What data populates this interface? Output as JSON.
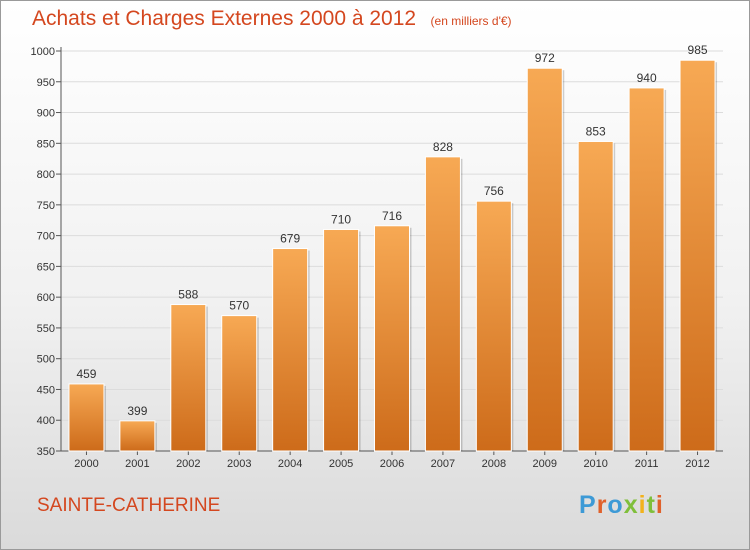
{
  "header": {
    "title": "Achats et Charges Externes 2000 à 2012",
    "subtitle": "(en milliers d'€)"
  },
  "footer": {
    "city": "SAINTE-CATHERINE",
    "logo_text": "Proxiti",
    "logo_colors": [
      "#3d9ad6",
      "#e0612b",
      "#3d9ad6",
      "#7fbf3a",
      "#f2b21c",
      "#7fbf3a",
      "#e0612b"
    ]
  },
  "colors": {
    "accent": "#d4471f",
    "bar_top": "#f7a954",
    "bar_bottom": "#cd6b1a",
    "grid": "#dcdcdc"
  },
  "chart_data": {
    "type": "bar",
    "title": "Achats et Charges Externes 2000 à 2012",
    "subtitle": "(en milliers d'€)",
    "categories": [
      "2000",
      "2001",
      "2002",
      "2003",
      "2004",
      "2005",
      "2006",
      "2007",
      "2008",
      "2009",
      "2010",
      "2011",
      "2012"
    ],
    "values": [
      459,
      399,
      588,
      570,
      679,
      710,
      716,
      828,
      756,
      972,
      853,
      940,
      985
    ],
    "ylim": [
      350,
      1000
    ],
    "yticks": [
      350,
      400,
      450,
      500,
      550,
      600,
      650,
      700,
      750,
      800,
      850,
      900,
      950,
      1000
    ],
    "grid": true,
    "legend": false
  }
}
